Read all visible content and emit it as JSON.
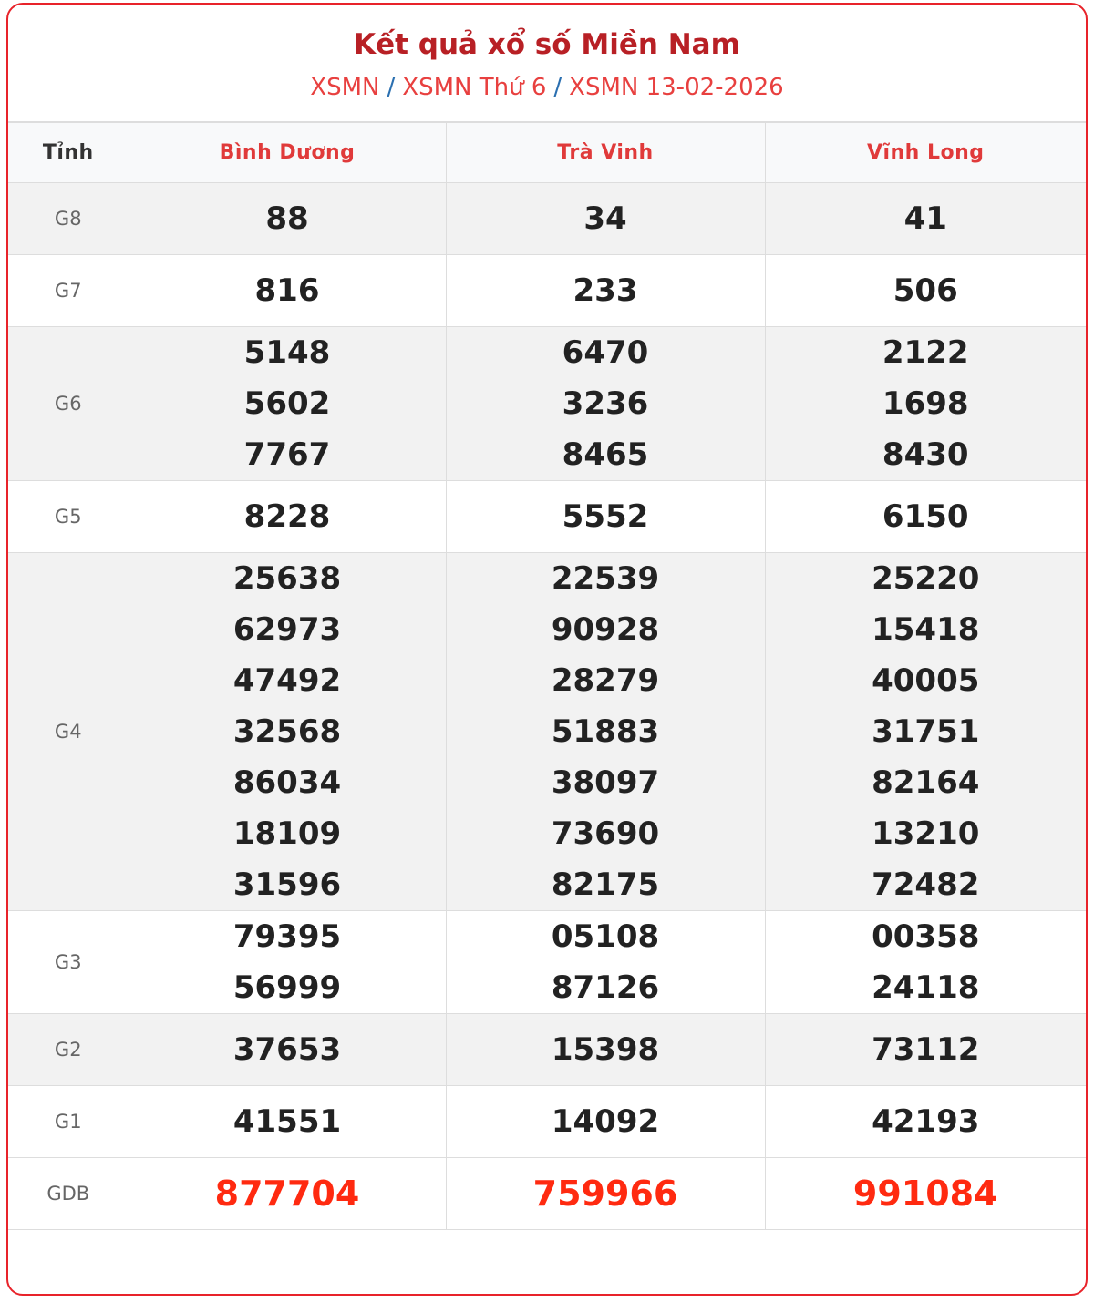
{
  "header": {
    "title": "Kết quả xổ số Miền Nam",
    "breadcrumb": [
      "XSMN",
      "XSMN Thứ 6",
      "XSMN 13-02-2026"
    ],
    "separator": "/"
  },
  "table": {
    "first_col_header": "Tỉnh",
    "provinces": [
      "Bình Dương",
      "Trà Vinh",
      "Vĩnh Long"
    ],
    "rows": [
      {
        "label": "G8",
        "values": [
          [
            "88"
          ],
          [
            "34"
          ],
          [
            "41"
          ]
        ]
      },
      {
        "label": "G7",
        "values": [
          [
            "816"
          ],
          [
            "233"
          ],
          [
            "506"
          ]
        ]
      },
      {
        "label": "G6",
        "values": [
          [
            "5148",
            "5602",
            "7767"
          ],
          [
            "6470",
            "3236",
            "8465"
          ],
          [
            "2122",
            "1698",
            "8430"
          ]
        ]
      },
      {
        "label": "G5",
        "values": [
          [
            "8228"
          ],
          [
            "5552"
          ],
          [
            "6150"
          ]
        ]
      },
      {
        "label": "G4",
        "values": [
          [
            "25638",
            "62973",
            "47492",
            "32568",
            "86034",
            "18109",
            "31596"
          ],
          [
            "22539",
            "90928",
            "28279",
            "51883",
            "38097",
            "73690",
            "82175"
          ],
          [
            "25220",
            "15418",
            "40005",
            "31751",
            "82164",
            "13210",
            "72482"
          ]
        ]
      },
      {
        "label": "G3",
        "values": [
          [
            "79395",
            "56999"
          ],
          [
            "05108",
            "87126"
          ],
          [
            "00358",
            "24118"
          ]
        ]
      },
      {
        "label": "G2",
        "values": [
          [
            "37653"
          ],
          [
            "15398"
          ],
          [
            "73112"
          ]
        ]
      },
      {
        "label": "G1",
        "values": [
          [
            "41551"
          ],
          [
            "14092"
          ],
          [
            "42193"
          ]
        ]
      },
      {
        "label": "GDB",
        "values": [
          [
            "877704"
          ],
          [
            "759966"
          ],
          [
            "991084"
          ]
        ]
      }
    ]
  },
  "colors": {
    "border": "#e8232a",
    "title": "#b82025",
    "special_prize": "#ff2a10"
  }
}
